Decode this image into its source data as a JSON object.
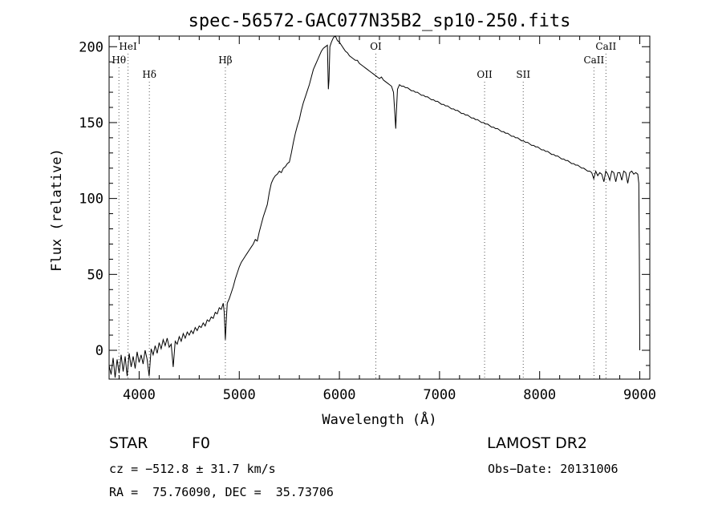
{
  "chart_data": {
    "type": "line",
    "title": "spec-56572-GAC077N35B2_sp10-250.fits",
    "xlabel": "Wavelength (Å)",
    "ylabel": "Flux (relative)",
    "xlim": [
      3700,
      9100
    ],
    "ylim": [
      -19,
      207
    ],
    "x_ticks": [
      4000,
      5000,
      6000,
      7000,
      8000,
      9000
    ],
    "y_ticks": [
      0,
      50,
      100,
      150,
      200
    ],
    "grid": false,
    "lines": [
      {
        "label": "Hθ",
        "wavelength": 3798,
        "row": 2
      },
      {
        "label": "HeI",
        "wavelength": 3889,
        "row": 1
      },
      {
        "label": "Hδ",
        "wavelength": 4102,
        "row": 3
      },
      {
        "label": "Hβ",
        "wavelength": 4861,
        "row": 2
      },
      {
        "label": "OI",
        "wavelength": 6364,
        "row": 1
      },
      {
        "label": "OII",
        "wavelength": 7450,
        "row": 3
      },
      {
        "label": "SII",
        "wavelength": 7836,
        "row": 3
      },
      {
        "label": "CaII",
        "wavelength": 8542,
        "row": 2
      },
      {
        "label": "CaII",
        "wavelength": 8662,
        "row": 1
      }
    ],
    "series": [
      {
        "points": [
          [
            3700,
            -10
          ],
          [
            3720,
            -16
          ],
          [
            3740,
            -5
          ],
          [
            3760,
            -18
          ],
          [
            3780,
            -6
          ],
          [
            3800,
            -15
          ],
          [
            3820,
            -3
          ],
          [
            3840,
            -14
          ],
          [
            3860,
            -4
          ],
          [
            3880,
            -17
          ],
          [
            3900,
            -2
          ],
          [
            3920,
            -11
          ],
          [
            3940,
            -4
          ],
          [
            3960,
            -12
          ],
          [
            3980,
            -1
          ],
          [
            4000,
            -8
          ],
          [
            4020,
            -3
          ],
          [
            4040,
            -9
          ],
          [
            4060,
            0
          ],
          [
            4080,
            -6
          ],
          [
            4100,
            -17
          ],
          [
            4120,
            1
          ],
          [
            4140,
            -3
          ],
          [
            4160,
            3
          ],
          [
            4180,
            -2
          ],
          [
            4200,
            5
          ],
          [
            4220,
            1
          ],
          [
            4240,
            7
          ],
          [
            4260,
            3
          ],
          [
            4280,
            8
          ],
          [
            4300,
            2
          ],
          [
            4320,
            4
          ],
          [
            4340,
            -11
          ],
          [
            4360,
            6
          ],
          [
            4380,
            4
          ],
          [
            4400,
            9
          ],
          [
            4420,
            6
          ],
          [
            4440,
            11
          ],
          [
            4460,
            8
          ],
          [
            4480,
            12
          ],
          [
            4500,
            10
          ],
          [
            4520,
            13
          ],
          [
            4540,
            11
          ],
          [
            4560,
            15
          ],
          [
            4580,
            13
          ],
          [
            4600,
            16
          ],
          [
            4620,
            15
          ],
          [
            4640,
            18
          ],
          [
            4660,
            16
          ],
          [
            4680,
            20
          ],
          [
            4700,
            19
          ],
          [
            4720,
            22
          ],
          [
            4740,
            21
          ],
          [
            4760,
            25
          ],
          [
            4780,
            24
          ],
          [
            4800,
            28
          ],
          [
            4820,
            27
          ],
          [
            4840,
            31
          ],
          [
            4850,
            25
          ],
          [
            4861,
            7
          ],
          [
            4872,
            22
          ],
          [
            4880,
            31
          ],
          [
            4900,
            34
          ],
          [
            4920,
            38
          ],
          [
            4940,
            42
          ],
          [
            4960,
            47
          ],
          [
            4980,
            51
          ],
          [
            5000,
            55
          ],
          [
            5020,
            58
          ],
          [
            5040,
            60
          ],
          [
            5060,
            62
          ],
          [
            5080,
            64
          ],
          [
            5100,
            66
          ],
          [
            5120,
            68
          ],
          [
            5140,
            70
          ],
          [
            5160,
            73
          ],
          [
            5180,
            72
          ],
          [
            5200,
            78
          ],
          [
            5220,
            83
          ],
          [
            5240,
            88
          ],
          [
            5260,
            92
          ],
          [
            5280,
            96
          ],
          [
            5300,
            104
          ],
          [
            5320,
            110
          ],
          [
            5340,
            113
          ],
          [
            5360,
            115
          ],
          [
            5380,
            116
          ],
          [
            5400,
            118
          ],
          [
            5420,
            117
          ],
          [
            5440,
            120
          ],
          [
            5460,
            121
          ],
          [
            5480,
            123
          ],
          [
            5500,
            124
          ],
          [
            5520,
            130
          ],
          [
            5540,
            137
          ],
          [
            5560,
            143
          ],
          [
            5580,
            148
          ],
          [
            5600,
            152
          ],
          [
            5620,
            158
          ],
          [
            5640,
            163
          ],
          [
            5660,
            167
          ],
          [
            5680,
            171
          ],
          [
            5700,
            175
          ],
          [
            5720,
            180
          ],
          [
            5740,
            185
          ],
          [
            5760,
            188
          ],
          [
            5780,
            191
          ],
          [
            5800,
            194
          ],
          [
            5820,
            197
          ],
          [
            5840,
            199
          ],
          [
            5860,
            200
          ],
          [
            5880,
            201
          ],
          [
            5890,
            172
          ],
          [
            5896,
            178
          ],
          [
            5905,
            200
          ],
          [
            5920,
            203
          ],
          [
            5940,
            206
          ],
          [
            5960,
            207
          ],
          [
            5980,
            204
          ],
          [
            6000,
            203
          ],
          [
            6020,
            201
          ],
          [
            6040,
            199
          ],
          [
            6060,
            197
          ],
          [
            6080,
            196
          ],
          [
            6100,
            194
          ],
          [
            6120,
            193
          ],
          [
            6140,
            192
          ],
          [
            6160,
            191
          ],
          [
            6180,
            191
          ],
          [
            6200,
            189
          ],
          [
            6220,
            188
          ],
          [
            6240,
            187
          ],
          [
            6260,
            186
          ],
          [
            6280,
            185
          ],
          [
            6300,
            184
          ],
          [
            6320,
            183
          ],
          [
            6340,
            182
          ],
          [
            6360,
            181
          ],
          [
            6380,
            180
          ],
          [
            6400,
            179
          ],
          [
            6420,
            180
          ],
          [
            6440,
            178
          ],
          [
            6460,
            177
          ],
          [
            6480,
            176
          ],
          [
            6500,
            175
          ],
          [
            6520,
            174
          ],
          [
            6540,
            170
          ],
          [
            6555,
            155
          ],
          [
            6563,
            146
          ],
          [
            6570,
            158
          ],
          [
            6580,
            172
          ],
          [
            6600,
            175
          ],
          [
            6620,
            174
          ],
          [
            6640,
            174
          ],
          [
            6660,
            173
          ],
          [
            6680,
            173
          ],
          [
            6700,
            172
          ],
          [
            6720,
            171
          ],
          [
            6740,
            171
          ],
          [
            6760,
            170
          ],
          [
            6780,
            170
          ],
          [
            6800,
            169
          ],
          [
            6820,
            168
          ],
          [
            6840,
            168
          ],
          [
            6860,
            167
          ],
          [
            6880,
            167
          ],
          [
            6900,
            166
          ],
          [
            6920,
            165
          ],
          [
            6940,
            165
          ],
          [
            6960,
            164
          ],
          [
            6980,
            164
          ],
          [
            7000,
            163
          ],
          [
            7020,
            162
          ],
          [
            7040,
            162
          ],
          [
            7060,
            161
          ],
          [
            7080,
            161
          ],
          [
            7100,
            160
          ],
          [
            7120,
            159
          ],
          [
            7140,
            159
          ],
          [
            7160,
            158
          ],
          [
            7180,
            158
          ],
          [
            7200,
            157
          ],
          [
            7220,
            156
          ],
          [
            7240,
            156
          ],
          [
            7260,
            155
          ],
          [
            7280,
            155
          ],
          [
            7300,
            154
          ],
          [
            7320,
            153
          ],
          [
            7340,
            153
          ],
          [
            7360,
            152
          ],
          [
            7380,
            152
          ],
          [
            7400,
            151
          ],
          [
            7420,
            150
          ],
          [
            7440,
            150
          ],
          [
            7460,
            149
          ],
          [
            7480,
            149
          ],
          [
            7500,
            148
          ],
          [
            7520,
            147
          ],
          [
            7540,
            147
          ],
          [
            7560,
            146
          ],
          [
            7580,
            146
          ],
          [
            7600,
            145
          ],
          [
            7620,
            144
          ],
          [
            7640,
            144
          ],
          [
            7660,
            143
          ],
          [
            7680,
            143
          ],
          [
            7700,
            142
          ],
          [
            7720,
            141
          ],
          [
            7740,
            141
          ],
          [
            7760,
            140
          ],
          [
            7780,
            140
          ],
          [
            7800,
            139
          ],
          [
            7820,
            138
          ],
          [
            7840,
            138
          ],
          [
            7860,
            137
          ],
          [
            7880,
            137
          ],
          [
            7900,
            136
          ],
          [
            7920,
            135
          ],
          [
            7940,
            135
          ],
          [
            7960,
            134
          ],
          [
            7980,
            134
          ],
          [
            8000,
            133
          ],
          [
            8020,
            132
          ],
          [
            8040,
            132
          ],
          [
            8060,
            131
          ],
          [
            8080,
            131
          ],
          [
            8100,
            130
          ],
          [
            8120,
            129
          ],
          [
            8140,
            129
          ],
          [
            8160,
            128
          ],
          [
            8180,
            128
          ],
          [
            8200,
            127
          ],
          [
            8220,
            126
          ],
          [
            8240,
            126
          ],
          [
            8260,
            125
          ],
          [
            8280,
            125
          ],
          [
            8300,
            124
          ],
          [
            8320,
            123
          ],
          [
            8340,
            123
          ],
          [
            8360,
            122
          ],
          [
            8380,
            122
          ],
          [
            8400,
            121
          ],
          [
            8420,
            120
          ],
          [
            8440,
            120
          ],
          [
            8460,
            119
          ],
          [
            8480,
            118
          ],
          [
            8500,
            118
          ],
          [
            8520,
            117
          ],
          [
            8540,
            113
          ],
          [
            8560,
            118
          ],
          [
            8580,
            115
          ],
          [
            8600,
            117
          ],
          [
            8620,
            116
          ],
          [
            8642,
            111
          ],
          [
            8660,
            118
          ],
          [
            8680,
            116
          ],
          [
            8700,
            112
          ],
          [
            8720,
            118
          ],
          [
            8740,
            117
          ],
          [
            8760,
            111
          ],
          [
            8780,
            117
          ],
          [
            8800,
            117
          ],
          [
            8820,
            112
          ],
          [
            8840,
            118
          ],
          [
            8860,
            117
          ],
          [
            8880,
            110
          ],
          [
            8900,
            117
          ],
          [
            8920,
            118
          ],
          [
            8940,
            116
          ],
          [
            8960,
            117
          ],
          [
            8980,
            116
          ],
          [
            8990,
            110
          ],
          [
            8996,
            60
          ],
          [
            9000,
            0
          ]
        ]
      }
    ]
  },
  "info": {
    "object": "STAR",
    "subclass": "F0",
    "survey": "LAMOST DR2",
    "cz": "cz = −512.8 ± 31.7 km/s",
    "obs_date": "Obs−Date: 20131006",
    "radec": "RA =  75.76090, DEC =  35.73706"
  }
}
